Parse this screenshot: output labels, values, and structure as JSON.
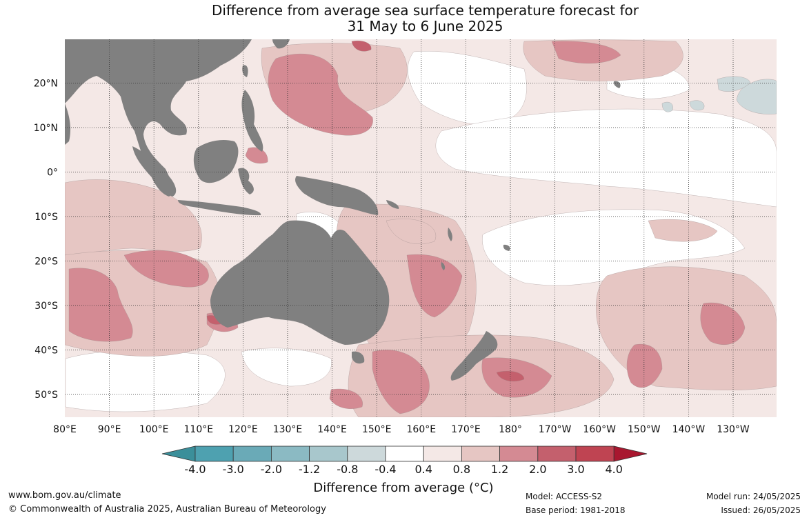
{
  "title": {
    "line1": "Difference from average sea surface temperature forecast for",
    "line2": "31 May to 6 June 2025"
  },
  "map": {
    "lat_labels": [
      "20°N",
      "10°N",
      "0°",
      "10°S",
      "20°S",
      "30°S",
      "40°S",
      "50°S"
    ],
    "lon_labels": [
      "80°E",
      "90°E",
      "100°E",
      "110°E",
      "120°E",
      "130°E",
      "140°E",
      "150°E",
      "160°E",
      "170°E",
      "180°",
      "170°W",
      "160°W",
      "150°W",
      "140°W",
      "130°W"
    ],
    "colors": {
      "land": "#808080",
      "ocean_zero": "#ffffff",
      "anom_0_4_0_8": "#f4e8e6",
      "anom_0_8_1_2": "#e6c6c3",
      "anom_1_2_2_0": "#d48a93",
      "anom_2_0_3_0": "#c4606d",
      "anom_neg_0_8_neg_0_4": "#cdd9db"
    }
  },
  "legend": {
    "ticks": [
      "-4.0",
      "-3.0",
      "-2.0",
      "-1.2",
      "-0.8",
      "-0.4",
      "0.4",
      "0.8",
      "1.2",
      "2.0",
      "3.0",
      "4.0"
    ],
    "colors": [
      "#3b8f9a",
      "#4ea1b0",
      "#6aaab7",
      "#8bbac3",
      "#a8c7cc",
      "#cdd9db",
      "#ffffff",
      "#f4e8e6",
      "#e6c6c3",
      "#d48a93",
      "#c4606d",
      "#bf4452",
      "#a8172f"
    ],
    "title": "Difference from average (°C)"
  },
  "footer": {
    "url": "www.bom.gov.au/climate",
    "copyright": "© Commonwealth of Australia 2025, Australian Bureau of Meteorology",
    "model": "Model: ACCESS-S2",
    "base_period": "Base period: 1981-2018",
    "model_run": "Model run: 24/05/2025",
    "issued": "Issued: 26/05/2025"
  }
}
